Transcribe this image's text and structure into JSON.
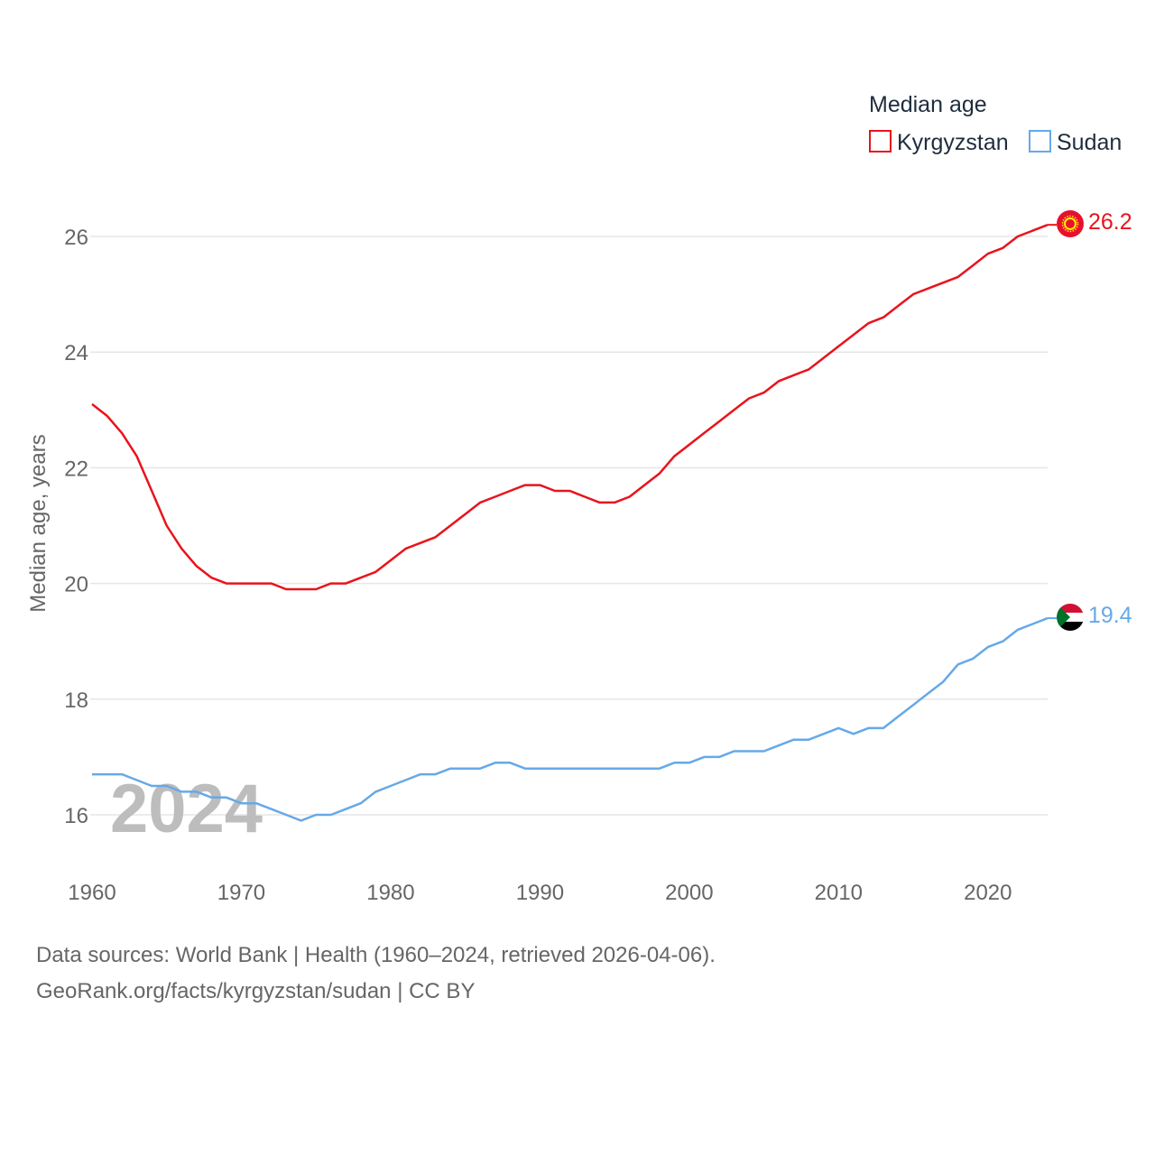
{
  "chart_data": {
    "type": "line",
    "title": "",
    "xlabel": "",
    "ylabel": "Median age, years",
    "xlim": [
      1960,
      2024
    ],
    "ylim": [
      15,
      27
    ],
    "yticks": [
      16,
      18,
      20,
      22,
      24,
      26
    ],
    "xticks": [
      1960,
      1970,
      1980,
      1990,
      2000,
      2010,
      2020
    ],
    "watermark_year": "2024",
    "legend": {
      "title": "Median age",
      "placement": "top-right"
    },
    "series": [
      {
        "name": "Kyrgyzstan",
        "color": "#e8141c",
        "end_label": "26.2",
        "flag_icon": "kyrgyzstan-flag-icon",
        "x": [
          1960,
          1961,
          1962,
          1963,
          1964,
          1965,
          1966,
          1967,
          1968,
          1969,
          1970,
          1971,
          1972,
          1973,
          1974,
          1975,
          1976,
          1977,
          1978,
          1979,
          1980,
          1981,
          1982,
          1983,
          1984,
          1985,
          1986,
          1987,
          1988,
          1989,
          1990,
          1991,
          1992,
          1993,
          1994,
          1995,
          1996,
          1997,
          1998,
          1999,
          2000,
          2001,
          2002,
          2003,
          2004,
          2005,
          2006,
          2007,
          2008,
          2009,
          2010,
          2011,
          2012,
          2013,
          2014,
          2015,
          2016,
          2017,
          2018,
          2019,
          2020,
          2021,
          2022,
          2023,
          2024
        ],
        "values": [
          23.1,
          22.9,
          22.6,
          22.2,
          21.6,
          21.0,
          20.6,
          20.3,
          20.1,
          20.0,
          20.0,
          20.0,
          20.0,
          19.9,
          19.9,
          19.9,
          20.0,
          20.0,
          20.1,
          20.2,
          20.4,
          20.6,
          20.7,
          20.8,
          21.0,
          21.2,
          21.4,
          21.5,
          21.6,
          21.7,
          21.7,
          21.6,
          21.6,
          21.5,
          21.4,
          21.4,
          21.5,
          21.7,
          21.9,
          22.2,
          22.4,
          22.6,
          22.8,
          23.0,
          23.2,
          23.3,
          23.5,
          23.6,
          23.7,
          23.9,
          24.1,
          24.3,
          24.5,
          24.6,
          24.8,
          25.0,
          25.1,
          25.2,
          25.3,
          25.5,
          25.7,
          25.8,
          26.0,
          26.1,
          26.2
        ]
      },
      {
        "name": "Sudan",
        "color": "#66a9e8",
        "end_label": "19.4",
        "flag_icon": "sudan-flag-icon",
        "x": [
          1960,
          1961,
          1962,
          1963,
          1964,
          1965,
          1966,
          1967,
          1968,
          1969,
          1970,
          1971,
          1972,
          1973,
          1974,
          1975,
          1976,
          1977,
          1978,
          1979,
          1980,
          1981,
          1982,
          1983,
          1984,
          1985,
          1986,
          1987,
          1988,
          1989,
          1990,
          1991,
          1992,
          1993,
          1994,
          1995,
          1996,
          1997,
          1998,
          1999,
          2000,
          2001,
          2002,
          2003,
          2004,
          2005,
          2006,
          2007,
          2008,
          2009,
          2010,
          2011,
          2012,
          2013,
          2014,
          2015,
          2016,
          2017,
          2018,
          2019,
          2020,
          2021,
          2022,
          2023,
          2024
        ],
        "values": [
          16.7,
          16.7,
          16.7,
          16.6,
          16.5,
          16.5,
          16.4,
          16.4,
          16.3,
          16.3,
          16.2,
          16.2,
          16.1,
          16.0,
          15.9,
          16.0,
          16.0,
          16.1,
          16.2,
          16.4,
          16.5,
          16.6,
          16.7,
          16.7,
          16.8,
          16.8,
          16.8,
          16.9,
          16.9,
          16.8,
          16.8,
          16.8,
          16.8,
          16.8,
          16.8,
          16.8,
          16.8,
          16.8,
          16.8,
          16.9,
          16.9,
          17.0,
          17.0,
          17.1,
          17.1,
          17.1,
          17.2,
          17.3,
          17.3,
          17.4,
          17.5,
          17.4,
          17.5,
          17.5,
          17.7,
          17.9,
          18.1,
          18.3,
          18.6,
          18.7,
          18.9,
          19.0,
          19.2,
          19.3,
          19.4
        ]
      }
    ]
  },
  "footer": {
    "line1": "Data sources: World Bank | Health (1960–2024, retrieved 2026-04-06).",
    "line2": "GeoRank.org/facts/kyrgyzstan/sudan | CC BY"
  }
}
